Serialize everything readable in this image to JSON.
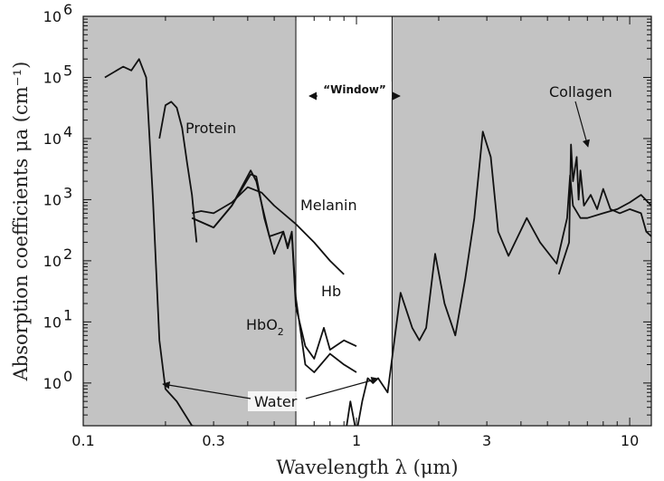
{
  "chart_data": {
    "type": "line",
    "xscale": "log",
    "yscale": "log",
    "xlim": [
      0.1,
      12
    ],
    "ylim": [
      0.2,
      1000000
    ],
    "xlabel": "Wavelength λ (μm)",
    "ylabel": "Absorption coefficients μa (cm⁻¹)",
    "x_ticks": [
      {
        "value": 0.1,
        "label": "0.1"
      },
      {
        "value": 0.3,
        "label": "0.3"
      },
      {
        "value": 1,
        "label": "1"
      },
      {
        "value": 3,
        "label": "3"
      },
      {
        "value": 10,
        "label": "10"
      }
    ],
    "y_ticks": [
      {
        "value": 1,
        "exp": "0"
      },
      {
        "value": 10,
        "exp": "1"
      },
      {
        "value": 100,
        "exp": "2"
      },
      {
        "value": 1000,
        "exp": "3"
      },
      {
        "value": 10000,
        "exp": "4"
      },
      {
        "value": 100000,
        "exp": "5"
      },
      {
        "value": 1000000,
        "exp": "6"
      }
    ],
    "y_tick_base": "10",
    "window": {
      "x_start": 0.6,
      "x_end": 1.35,
      "label": "“Window”"
    },
    "shaded_color": "#c3c3c3",
    "line_color": "#111111",
    "series": [
      {
        "name": "Protein",
        "points": [
          [
            0.19,
            10000
          ],
          [
            0.2,
            35000
          ],
          [
            0.21,
            40000
          ],
          [
            0.22,
            32000
          ],
          [
            0.23,
            15000
          ],
          [
            0.24,
            4000
          ],
          [
            0.25,
            1200
          ],
          [
            0.26,
            200
          ]
        ]
      },
      {
        "name": "Melanin",
        "points": [
          [
            0.25,
            600
          ],
          [
            0.27,
            650
          ],
          [
            0.3,
            600
          ],
          [
            0.35,
            900
          ],
          [
            0.4,
            1600
          ],
          [
            0.45,
            1300
          ],
          [
            0.5,
            800
          ],
          [
            0.6,
            400
          ],
          [
            0.7,
            200
          ],
          [
            0.8,
            100
          ],
          [
            0.9,
            60
          ]
        ]
      },
      {
        "name": "Hb",
        "points": [
          [
            0.25,
            500
          ],
          [
            0.3,
            350
          ],
          [
            0.35,
            800
          ],
          [
            0.41,
            2600
          ],
          [
            0.43,
            2400
          ],
          [
            0.46,
            500
          ],
          [
            0.5,
            130
          ],
          [
            0.54,
            300
          ],
          [
            0.56,
            160
          ],
          [
            0.58,
            280
          ],
          [
            0.6,
            18
          ],
          [
            0.65,
            4
          ],
          [
            0.7,
            2.5
          ],
          [
            0.76,
            8
          ],
          [
            0.8,
            3.5
          ],
          [
            0.9,
            5
          ],
          [
            1.0,
            4
          ]
        ]
      },
      {
        "name": "HbO2",
        "points": [
          [
            0.25,
            500
          ],
          [
            0.3,
            350
          ],
          [
            0.35,
            800
          ],
          [
            0.41,
            3000
          ],
          [
            0.43,
            2000
          ],
          [
            0.48,
            250
          ],
          [
            0.54,
            300
          ],
          [
            0.56,
            170
          ],
          [
            0.58,
            300
          ],
          [
            0.6,
            25
          ],
          [
            0.65,
            2
          ],
          [
            0.7,
            1.5
          ],
          [
            0.8,
            3
          ],
          [
            0.9,
            2
          ],
          [
            1.0,
            1.5
          ]
        ]
      },
      {
        "name": "Water",
        "points": [
          [
            0.12,
            100000
          ],
          [
            0.14,
            150000
          ],
          [
            0.15,
            130000
          ],
          [
            0.16,
            200000
          ],
          [
            0.17,
            100000
          ],
          [
            0.18,
            1000
          ],
          [
            0.19,
            5
          ],
          [
            0.2,
            0.8
          ],
          [
            0.22,
            0.5
          ],
          [
            0.25,
            0.2
          ],
          [
            0.7,
            0.1
          ],
          [
            0.8,
            0.2
          ],
          [
            0.9,
            0.1
          ],
          [
            0.95,
            0.5
          ],
          [
            1.0,
            0.15
          ],
          [
            1.05,
            0.5
          ],
          [
            1.1,
            1.2
          ],
          [
            1.15,
            1.0
          ],
          [
            1.2,
            1.2
          ],
          [
            1.3,
            0.7
          ],
          [
            1.45,
            30
          ],
          [
            1.6,
            8
          ],
          [
            1.7,
            5
          ],
          [
            1.8,
            8
          ],
          [
            1.94,
            130
          ],
          [
            2.1,
            20
          ],
          [
            2.3,
            6
          ],
          [
            2.5,
            50
          ],
          [
            2.7,
            500
          ],
          [
            2.9,
            13000
          ],
          [
            3.1,
            5000
          ],
          [
            3.3,
            300
          ],
          [
            3.6,
            120
          ],
          [
            4.2,
            500
          ],
          [
            4.7,
            200
          ],
          [
            5.4,
            90
          ],
          [
            5.9,
            500
          ],
          [
            6.05,
            2500
          ],
          [
            6.2,
            800
          ],
          [
            6.6,
            500
          ],
          [
            7.0,
            500
          ],
          [
            8.0,
            600
          ],
          [
            9.0,
            700
          ],
          [
            10,
            900
          ],
          [
            11,
            1200
          ],
          [
            12,
            800
          ]
        ]
      },
      {
        "name": "Collagen",
        "points": [
          [
            5.5,
            60
          ],
          [
            6.0,
            200
          ],
          [
            6.1,
            8000
          ],
          [
            6.2,
            2000
          ],
          [
            6.4,
            5000
          ],
          [
            6.5,
            1000
          ],
          [
            6.6,
            3000
          ],
          [
            6.8,
            800
          ],
          [
            7.2,
            1200
          ],
          [
            7.6,
            700
          ],
          [
            8.0,
            1500
          ],
          [
            8.5,
            700
          ],
          [
            9.2,
            600
          ],
          [
            10,
            700
          ],
          [
            11,
            600
          ],
          [
            11.5,
            300
          ],
          [
            12,
            250
          ]
        ]
      }
    ],
    "annotations": {
      "protein": "Protein",
      "melanin": "Melanin",
      "hb": "Hb",
      "hbo2_main": "HbO",
      "hbo2_sub": "2",
      "water": "Water",
      "collagen": "Collagen"
    }
  }
}
